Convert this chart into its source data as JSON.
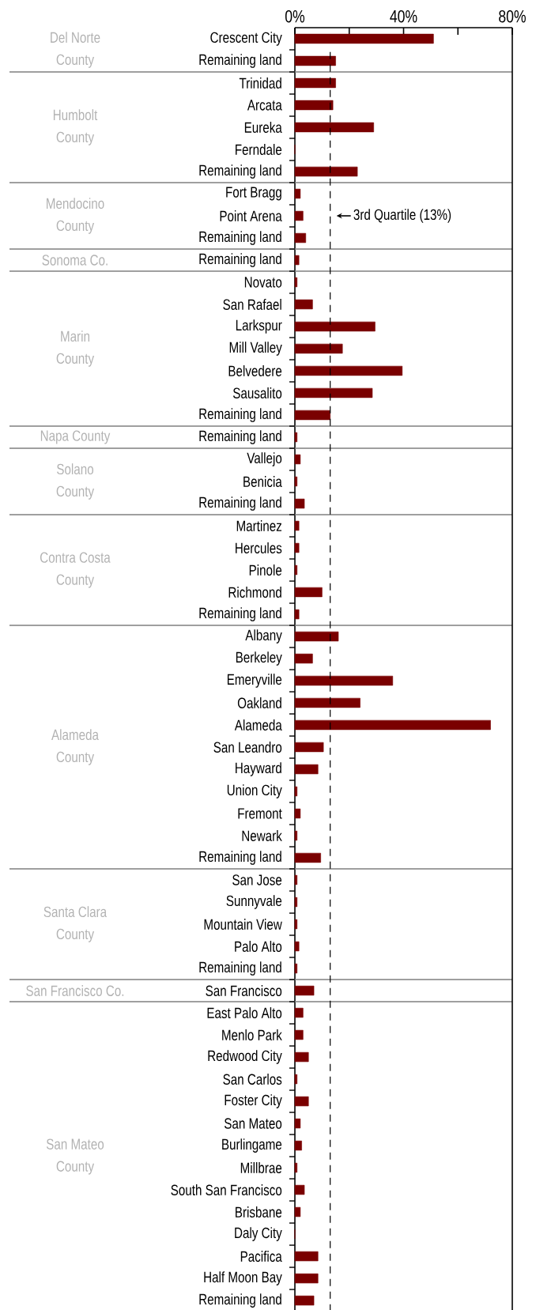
{
  "chart_data": {
    "type": "bar",
    "orientation": "horizontal",
    "categories": [
      "Crescent City",
      "Remaining land",
      "Trinidad",
      "Arcata",
      "Eureka",
      "Ferndale",
      "Remaining land",
      "Fort Bragg",
      "Point Arena",
      "Remaining land",
      "Remaining land",
      "Novato",
      "San Rafael",
      "Larkspur",
      "Mill Valley",
      "Belvedere",
      "Sausalito",
      "Remaining land",
      "Remaining land",
      "Vallejo",
      "Benicia",
      "Remaining land",
      "Martinez",
      "Hercules",
      "Pinole",
      "Richmond",
      "Remaining land",
      "Albany",
      "Berkeley",
      "Emeryville",
      "Oakland",
      "Alameda",
      "San Leandro",
      "Hayward",
      "Union City",
      "Fremont",
      "Newark",
      "Remaining land",
      "San Jose",
      "Sunnyvale",
      "Mountain View",
      "Palo Alto",
      "Remaining land",
      "San Francisco",
      "East Palo Alto",
      "Menlo Park",
      "Redwood City",
      "San Carlos",
      "Foster City",
      "San Mateo",
      "Burlingame",
      "Millbrae",
      "South San Francisco",
      "Brisbane",
      "Daly City",
      "Pacifica",
      "Half Moon Bay",
      "Remaining land"
    ],
    "values": [
      51,
      15,
      15,
      14,
      29,
      0,
      23,
      2,
      3,
      4,
      1.5,
      0.8,
      6.5,
      29.5,
      17.5,
      39.5,
      28.5,
      13,
      0.8,
      2,
      0.8,
      3.5,
      1.5,
      1.5,
      0.8,
      10,
      1.5,
      16,
      6.5,
      36,
      24,
      72,
      10.5,
      8.5,
      0.8,
      2,
      0.8,
      9.5,
      0.8,
      0.8,
      0.8,
      1.5,
      0.8,
      7,
      3,
      3,
      5,
      0.8,
      5,
      2,
      2.5,
      0.8,
      3.5,
      2,
      0,
      8.5,
      8.5,
      7
    ],
    "color": "#7a0000",
    "xlim": [
      0,
      80
    ],
    "xticks": [
      {
        "value": 0,
        "label": "0%"
      },
      {
        "value": 20,
        "label": null
      },
      {
        "value": 40,
        "label": "40%"
      },
      {
        "value": 60,
        "label": null
      },
      {
        "value": 80,
        "label": "80%"
      }
    ],
    "ref_lines": [
      {
        "axis": "x",
        "value": 13,
        "label": "3rd Quartile (13%)",
        "line_style": "dashed",
        "color": "#000000"
      }
    ],
    "annotations": [
      "Del Norte County",
      "Humbolt County",
      "Mendocino County",
      "Sonoma Co.",
      "Marin County",
      "Napa County",
      "Solano County",
      "Contra Costa County",
      "Alameda County",
      "Santa Clara County",
      "San Francisco Co.",
      "San Mateo County"
    ]
  }
}
